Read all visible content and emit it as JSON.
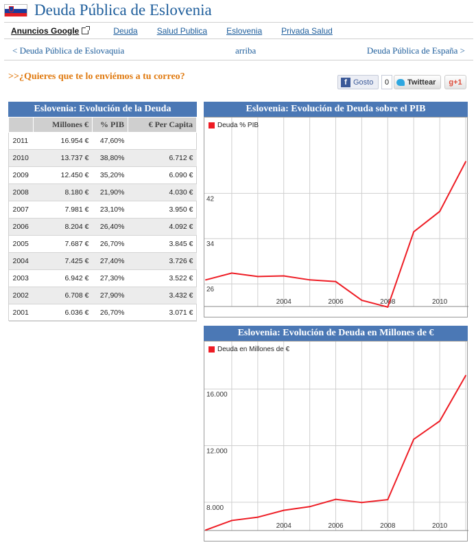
{
  "header": {
    "title": "Deuda Pública de Eslovenia"
  },
  "adbar": {
    "label": "Anuncios Google",
    "links": [
      "Deuda",
      "Salud Publica",
      "Eslovenia",
      "Privada Salud"
    ]
  },
  "nav": {
    "prev": "< Deuda Pública de Eslovaquia",
    "up": "arriba",
    "next": "Deuda Pública de España >"
  },
  "promo": ">>¿Quieres que te lo enviémos a tu correo?",
  "social": {
    "like": "Gosto",
    "count": "0",
    "tweet": "Twittear",
    "gplus": "+1"
  },
  "table": {
    "title": "Eslovenia: Evolución de la Deuda",
    "headers": [
      "",
      "Millones €",
      "% PIB",
      "€ Per Capita"
    ],
    "rows": [
      [
        "2011",
        "16.954 €",
        "47,60%",
        ""
      ],
      [
        "2010",
        "13.737 €",
        "38,80%",
        "6.712 €"
      ],
      [
        "2009",
        "12.450 €",
        "35,20%",
        "6.090 €"
      ],
      [
        "2008",
        "8.180 €",
        "21,90%",
        "4.030 €"
      ],
      [
        "2007",
        "7.981 €",
        "23,10%",
        "3.950 €"
      ],
      [
        "2006",
        "8.204 €",
        "26,40%",
        "4.092 €"
      ],
      [
        "2005",
        "7.687 €",
        "26,70%",
        "3.845 €"
      ],
      [
        "2004",
        "7.425 €",
        "27,40%",
        "3.726 €"
      ],
      [
        "2003",
        "6.942 €",
        "27,30%",
        "3.522 €"
      ],
      [
        "2002",
        "6.708 €",
        "27,90%",
        "3.432 €"
      ],
      [
        "2001",
        "6.036 €",
        "26,70%",
        "3.071 €"
      ]
    ]
  },
  "colors": {
    "line": "#ee1c24",
    "panel": "#4b78b5"
  },
  "chart_data": [
    {
      "type": "line",
      "title": "Eslovenia: Evolución de Deuda sobre el PIB",
      "legend": "top-left",
      "x": [
        2001,
        2002,
        2003,
        2004,
        2005,
        2006,
        2007,
        2008,
        2009,
        2010,
        2011
      ],
      "x_ticks": [
        "2004",
        "2006",
        "2008",
        "2010"
      ],
      "y_ticks": [
        "26",
        "34",
        "42"
      ],
      "ylim": [
        22,
        52
      ],
      "grid": true,
      "series": [
        {
          "name": "Deuda % PIB",
          "values": [
            26.7,
            27.9,
            27.3,
            27.4,
            26.7,
            26.4,
            23.1,
            21.9,
            35.2,
            38.8,
            47.6
          ]
        }
      ]
    },
    {
      "type": "line",
      "title": "Eslovenia: Evolución de Deuda en Millones de €",
      "legend": "top-left",
      "x": [
        2001,
        2002,
        2003,
        2004,
        2005,
        2006,
        2007,
        2008,
        2009,
        2010,
        2011
      ],
      "x_ticks": [
        "2004",
        "2006",
        "2008",
        "2010"
      ],
      "y_ticks": [
        "8.000",
        "12.000",
        "16.000"
      ],
      "ylim": [
        6000,
        18000
      ],
      "grid": true,
      "series": [
        {
          "name": "Deuda en Millones de €",
          "values": [
            6036,
            6708,
            6942,
            7425,
            7687,
            8204,
            7981,
            8180,
            12450,
            13737,
            16954
          ]
        }
      ]
    }
  ]
}
